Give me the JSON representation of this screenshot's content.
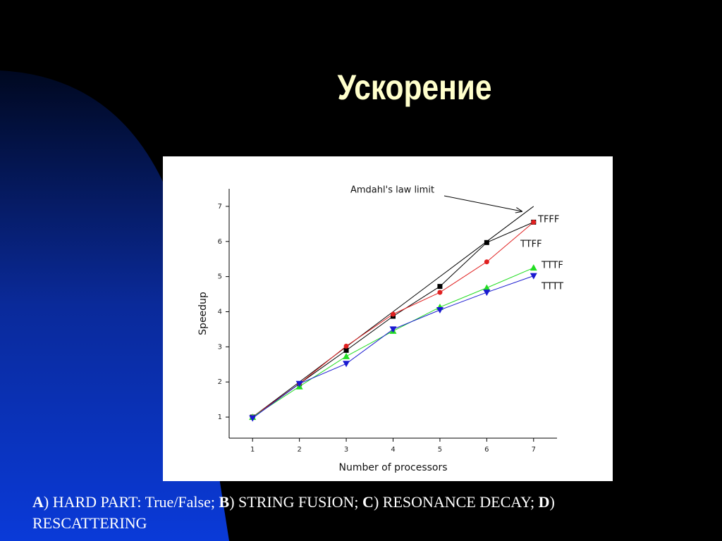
{
  "slide": {
    "title": "Ускорение",
    "caption": [
      {
        "text": "A",
        "bold": true
      },
      {
        "text": ") HARD PART: True/False; ",
        "bold": false
      },
      {
        "text": "B",
        "bold": true
      },
      {
        "text": ") STRING FUSION; ",
        "bold": false
      },
      {
        "text": "C",
        "bold": true
      },
      {
        "text": ") RESONANCE DECAY; ",
        "bold": false
      },
      {
        "text": "D",
        "bold": true
      },
      {
        "text": ") RESCATTERING",
        "bold": false
      }
    ]
  },
  "chart_data": {
    "type": "line",
    "x_label": "Number of processors",
    "y_label": "Speedup",
    "x": [
      1,
      2,
      3,
      4,
      5,
      6,
      7
    ],
    "xlim": [
      0.5,
      7.5
    ],
    "xticks": [
      1,
      2,
      3,
      4,
      5,
      6,
      7
    ],
    "ylim": [
      0.4,
      7.5
    ],
    "yticks": [
      1,
      2,
      3,
      4,
      5,
      6,
      7
    ],
    "series": [
      {
        "name": "Amdahl's law limit",
        "color": "#000000",
        "marker": "none",
        "values": [
          1,
          2,
          3,
          4,
          5,
          6,
          7
        ]
      },
      {
        "name": "TFFF",
        "color": "#000000",
        "marker": "square",
        "values": [
          1,
          1.95,
          2.9,
          3.87,
          4.72,
          5.97,
          6.55
        ]
      },
      {
        "name": "TTFF",
        "color": "#e02020",
        "marker": "circle",
        "values": [
          1,
          1.95,
          3.02,
          3.93,
          4.55,
          5.42,
          6.55
        ]
      },
      {
        "name": "TTTF",
        "color": "#22dd22",
        "marker": "triangle-up",
        "values": [
          1,
          1.87,
          2.73,
          3.45,
          4.13,
          4.68,
          5.25
        ]
      },
      {
        "name": "TTTT",
        "color": "#1a1ad0",
        "marker": "triangle-down",
        "values": [
          0.97,
          1.95,
          2.52,
          3.5,
          4.05,
          4.55,
          5.02
        ]
      }
    ]
  }
}
